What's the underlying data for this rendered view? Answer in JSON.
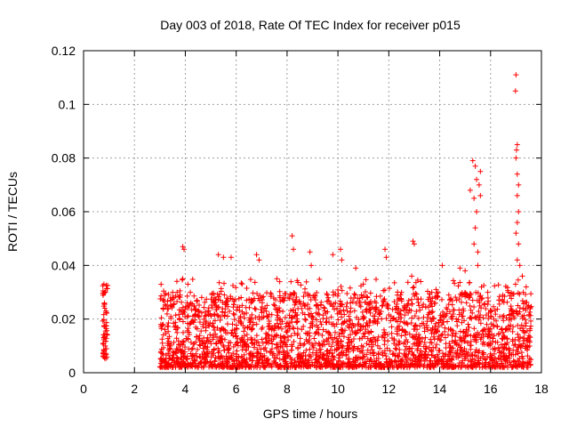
{
  "chart_data": {
    "type": "scatter",
    "title": "Day 003 of 2018, Rate Of TEC Index for receiver p015",
    "xlabel": "GPS time / hours",
    "ylabel": "ROTI / TECUs",
    "xlim": [
      0,
      18
    ],
    "ylim": [
      0,
      0.12
    ],
    "xticks": [
      0,
      2,
      4,
      6,
      8,
      10,
      12,
      14,
      16,
      18
    ],
    "xtick_labels": [
      "0",
      "2",
      "4",
      "6",
      "8",
      "10",
      "12",
      "14",
      "16",
      "18"
    ],
    "yticks": [
      0,
      0.02,
      0.04,
      0.06,
      0.08,
      0.1,
      0.12
    ],
    "ytick_labels": [
      "0",
      "0.02",
      "0.04",
      "0.06",
      "0.08",
      "0.1",
      "0.12"
    ],
    "grid": true,
    "marker": "+",
    "color": "#ff0000",
    "segments": [
      {
        "x_start": 0.75,
        "x_end": 0.95,
        "y_min": 0.005,
        "y_max": 0.033
      },
      {
        "x_start": 3.0,
        "x_end": 17.6,
        "y_min": 0.002,
        "y_max": 0.03
      }
    ],
    "notable_points": [
      {
        "x": 0.8,
        "y": 0.033
      },
      {
        "x": 0.85,
        "y": 0.03
      },
      {
        "x": 0.82,
        "y": 0.026
      },
      {
        "x": 0.8,
        "y": 0.013
      },
      {
        "x": 0.85,
        "y": 0.01
      },
      {
        "x": 0.8,
        "y": 0.007
      },
      {
        "x": 3.9,
        "y": 0.047
      },
      {
        "x": 3.95,
        "y": 0.046
      },
      {
        "x": 3.9,
        "y": 0.035
      },
      {
        "x": 4.1,
        "y": 0.033
      },
      {
        "x": 5.3,
        "y": 0.044
      },
      {
        "x": 5.5,
        "y": 0.043
      },
      {
        "x": 5.8,
        "y": 0.043
      },
      {
        "x": 6.8,
        "y": 0.044
      },
      {
        "x": 6.9,
        "y": 0.042
      },
      {
        "x": 7.6,
        "y": 0.035
      },
      {
        "x": 8.2,
        "y": 0.051
      },
      {
        "x": 8.25,
        "y": 0.046
      },
      {
        "x": 8.9,
        "y": 0.045
      },
      {
        "x": 8.95,
        "y": 0.04
      },
      {
        "x": 9.8,
        "y": 0.044
      },
      {
        "x": 10.1,
        "y": 0.046
      },
      {
        "x": 10.15,
        "y": 0.042
      },
      {
        "x": 10.7,
        "y": 0.039
      },
      {
        "x": 11.85,
        "y": 0.046
      },
      {
        "x": 11.9,
        "y": 0.043
      },
      {
        "x": 12.95,
        "y": 0.049
      },
      {
        "x": 13.0,
        "y": 0.048
      },
      {
        "x": 12.9,
        "y": 0.036
      },
      {
        "x": 14.1,
        "y": 0.04
      },
      {
        "x": 14.8,
        "y": 0.039
      },
      {
        "x": 15.0,
        "y": 0.038
      },
      {
        "x": 15.2,
        "y": 0.068
      },
      {
        "x": 15.3,
        "y": 0.079
      },
      {
        "x": 15.4,
        "y": 0.077
      },
      {
        "x": 15.45,
        "y": 0.072
      },
      {
        "x": 15.35,
        "y": 0.065
      },
      {
        "x": 15.45,
        "y": 0.06
      },
      {
        "x": 15.4,
        "y": 0.054
      },
      {
        "x": 15.35,
        "y": 0.048
      },
      {
        "x": 15.5,
        "y": 0.045
      },
      {
        "x": 15.6,
        "y": 0.075
      },
      {
        "x": 15.55,
        "y": 0.07
      },
      {
        "x": 15.6,
        "y": 0.066
      },
      {
        "x": 15.5,
        "y": 0.04
      },
      {
        "x": 17.0,
        "y": 0.111
      },
      {
        "x": 16.98,
        "y": 0.105
      },
      {
        "x": 17.05,
        "y": 0.085
      },
      {
        "x": 17.02,
        "y": 0.083
      },
      {
        "x": 17.0,
        "y": 0.08
      },
      {
        "x": 17.05,
        "y": 0.074
      },
      {
        "x": 17.1,
        "y": 0.07
      },
      {
        "x": 17.05,
        "y": 0.066
      },
      {
        "x": 17.1,
        "y": 0.06
      },
      {
        "x": 17.05,
        "y": 0.056
      },
      {
        "x": 17.0,
        "y": 0.052
      },
      {
        "x": 17.1,
        "y": 0.048
      },
      {
        "x": 17.05,
        "y": 0.042
      },
      {
        "x": 17.15,
        "y": 0.04
      },
      {
        "x": 17.25,
        "y": 0.036
      },
      {
        "x": 17.4,
        "y": 0.032
      },
      {
        "x": 17.5,
        "y": 0.025
      }
    ]
  }
}
